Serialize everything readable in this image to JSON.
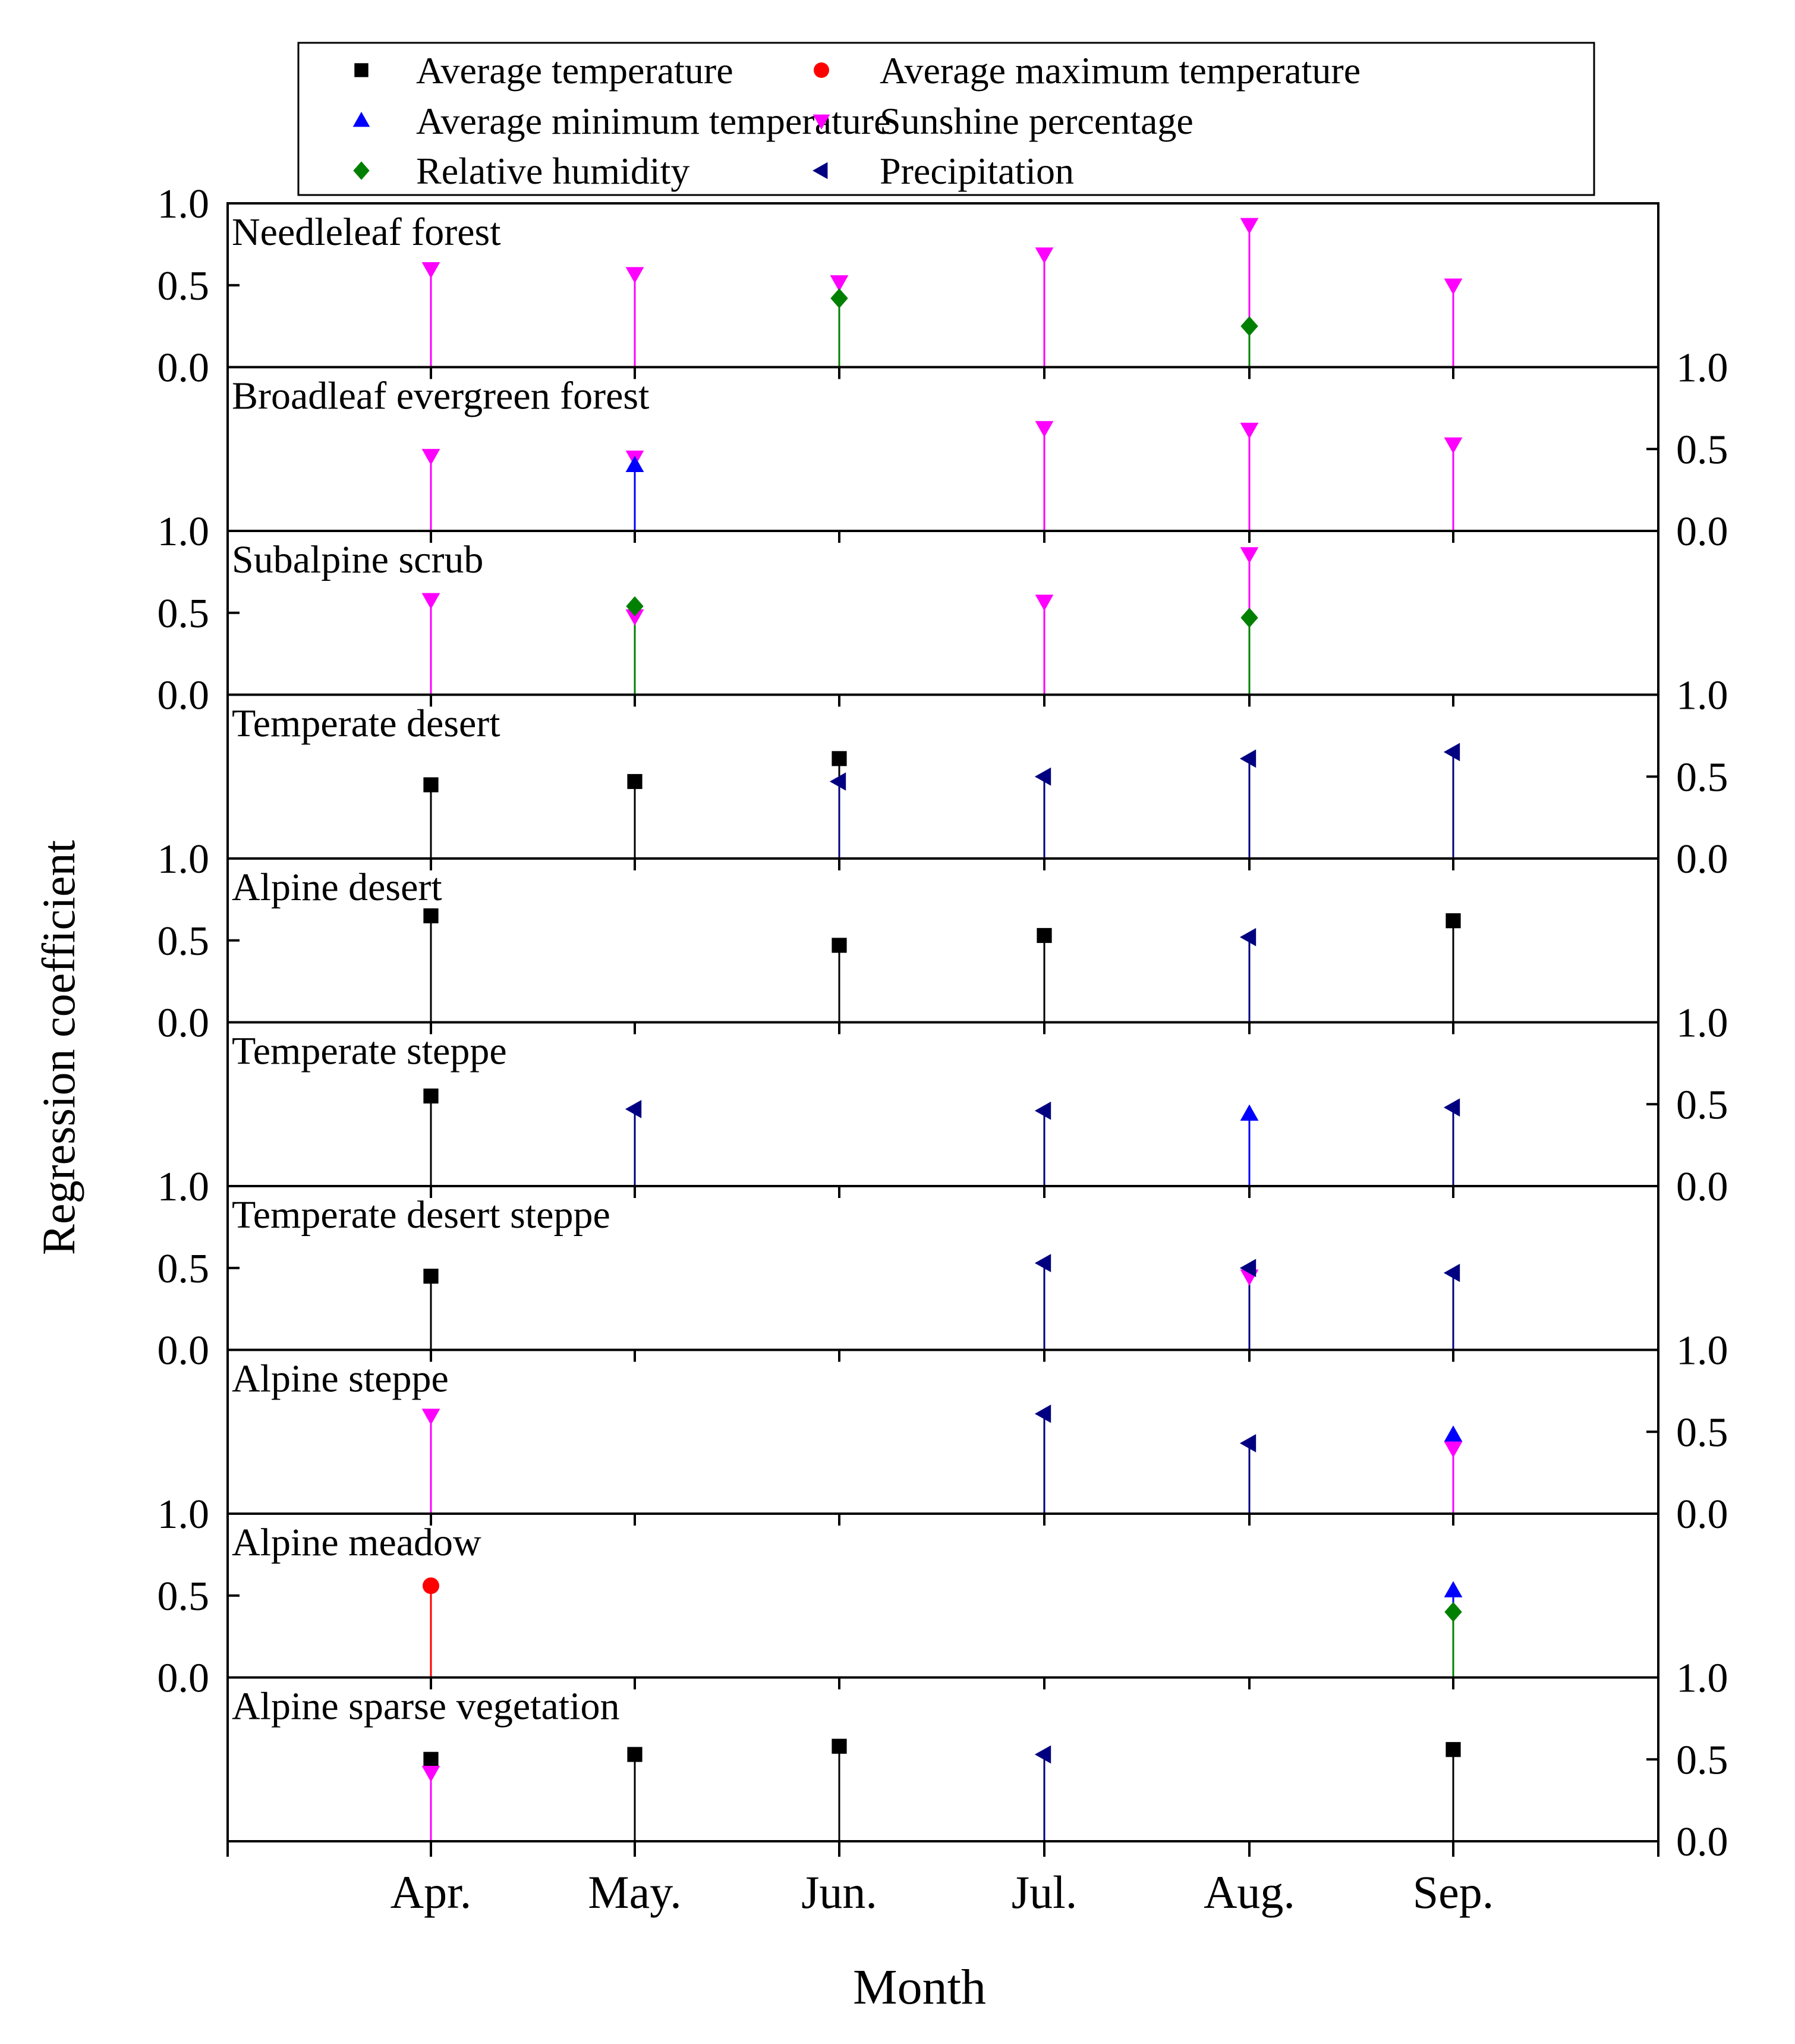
{
  "chart_data": {
    "type": "stem",
    "ylabel": "Regression coefficient",
    "xlabel": "Month",
    "categories": [
      "Apr.",
      "May.",
      "Jun.",
      "Jul.",
      "Aug.",
      "Sep."
    ],
    "ylim": [
      0,
      1.0
    ],
    "yticks": [
      "0.0",
      "0.5",
      "1.0"
    ],
    "legend": [
      {
        "key": "avg_temp",
        "label": "Average temperature",
        "color": "#000000",
        "marker": "square"
      },
      {
        "key": "avg_max_temp",
        "label": "Average maximum temperature",
        "color": "#ff0000",
        "marker": "circle"
      },
      {
        "key": "avg_min_temp",
        "label": "Average minimum temperature",
        "color": "#0000ff",
        "marker": "triangle-up"
      },
      {
        "key": "sunshine",
        "label": "Sunshine percentage",
        "color": "#ff00ff",
        "marker": "triangle-down"
      },
      {
        "key": "humidity",
        "label": "Relative humidity",
        "color": "#008000",
        "marker": "diamond"
      },
      {
        "key": "precip",
        "label": "Precipitation",
        "color": "#000080",
        "marker": "triangle-left"
      }
    ],
    "panels": [
      {
        "name": "Needleleaf forest",
        "axis_side": "left",
        "points": [
          {
            "month": 0,
            "var": "sunshine",
            "value": 0.6
          },
          {
            "month": 1,
            "var": "sunshine",
            "value": 0.57
          },
          {
            "month": 2,
            "var": "sunshine",
            "value": 0.52
          },
          {
            "month": 2,
            "var": "humidity",
            "value": 0.42
          },
          {
            "month": 3,
            "var": "sunshine",
            "value": 0.69
          },
          {
            "month": 4,
            "var": "sunshine",
            "value": 0.87
          },
          {
            "month": 4,
            "var": "humidity",
            "value": 0.25
          },
          {
            "month": 5,
            "var": "sunshine",
            "value": 0.5
          }
        ]
      },
      {
        "name": "Broadleaf evergreen forest",
        "axis_side": "right",
        "points": [
          {
            "month": 0,
            "var": "sunshine",
            "value": 0.46
          },
          {
            "month": 1,
            "var": "sunshine",
            "value": 0.45
          },
          {
            "month": 1,
            "var": "avg_min_temp",
            "value": 0.4
          },
          {
            "month": 3,
            "var": "sunshine",
            "value": 0.63
          },
          {
            "month": 4,
            "var": "sunshine",
            "value": 0.62
          },
          {
            "month": 5,
            "var": "sunshine",
            "value": 0.53
          }
        ]
      },
      {
        "name": "Subalpine scrub",
        "axis_side": "left",
        "points": [
          {
            "month": 0,
            "var": "sunshine",
            "value": 0.58
          },
          {
            "month": 1,
            "var": "sunshine",
            "value": 0.48
          },
          {
            "month": 1,
            "var": "humidity",
            "value": 0.54
          },
          {
            "month": 3,
            "var": "sunshine",
            "value": 0.57
          },
          {
            "month": 4,
            "var": "sunshine",
            "value": 0.86
          },
          {
            "month": 4,
            "var": "humidity",
            "value": 0.47
          }
        ]
      },
      {
        "name": "Temperate desert",
        "axis_side": "right",
        "points": [
          {
            "month": 0,
            "var": "avg_temp",
            "value": 0.45
          },
          {
            "month": 1,
            "var": "avg_temp",
            "value": 0.47
          },
          {
            "month": 2,
            "var": "avg_temp",
            "value": 0.61
          },
          {
            "month": 2,
            "var": "precip",
            "value": 0.47
          },
          {
            "month": 3,
            "var": "precip",
            "value": 0.5
          },
          {
            "month": 4,
            "var": "precip",
            "value": 0.61
          },
          {
            "month": 5,
            "var": "precip",
            "value": 0.65
          }
        ]
      },
      {
        "name": "Alpine desert",
        "axis_side": "left",
        "points": [
          {
            "month": 0,
            "var": "avg_temp",
            "value": 0.65
          },
          {
            "month": 2,
            "var": "avg_temp",
            "value": 0.47
          },
          {
            "month": 3,
            "var": "avg_temp",
            "value": 0.53
          },
          {
            "month": 4,
            "var": "precip",
            "value": 0.52
          },
          {
            "month": 5,
            "var": "avg_temp",
            "value": 0.62
          }
        ]
      },
      {
        "name": "Temperate steppe",
        "axis_side": "right",
        "points": [
          {
            "month": 0,
            "var": "avg_temp",
            "value": 0.55
          },
          {
            "month": 1,
            "var": "precip",
            "value": 0.47
          },
          {
            "month": 3,
            "var": "precip",
            "value": 0.46
          },
          {
            "month": 4,
            "var": "avg_min_temp",
            "value": 0.44
          },
          {
            "month": 5,
            "var": "precip",
            "value": 0.48
          }
        ]
      },
      {
        "name": "Temperate desert steppe",
        "axis_side": "left",
        "points": [
          {
            "month": 0,
            "var": "avg_temp",
            "value": 0.45
          },
          {
            "month": 3,
            "var": "precip",
            "value": 0.53
          },
          {
            "month": 4,
            "var": "sunshine",
            "value": 0.45
          },
          {
            "month": 4,
            "var": "precip",
            "value": 0.5
          },
          {
            "month": 5,
            "var": "precip",
            "value": 0.47
          }
        ]
      },
      {
        "name": "Alpine steppe",
        "axis_side": "right",
        "points": [
          {
            "month": 0,
            "var": "sunshine",
            "value": 0.6
          },
          {
            "month": 3,
            "var": "precip",
            "value": 0.61
          },
          {
            "month": 4,
            "var": "precip",
            "value": 0.43
          },
          {
            "month": 5,
            "var": "avg_min_temp",
            "value": 0.48
          },
          {
            "month": 5,
            "var": "sunshine",
            "value": 0.4
          }
        ]
      },
      {
        "name": "Alpine meadow",
        "axis_side": "left",
        "points": [
          {
            "month": 0,
            "var": "avg_max_temp",
            "value": 0.56
          },
          {
            "month": 5,
            "var": "avg_min_temp",
            "value": 0.53
          },
          {
            "month": 5,
            "var": "humidity",
            "value": 0.4
          }
        ]
      },
      {
        "name": "Alpine sparse vegetation",
        "axis_side": "right",
        "points": [
          {
            "month": 0,
            "var": "avg_temp",
            "value": 0.5
          },
          {
            "month": 0,
            "var": "sunshine",
            "value": 0.42
          },
          {
            "month": 1,
            "var": "avg_temp",
            "value": 0.53
          },
          {
            "month": 2,
            "var": "avg_temp",
            "value": 0.58
          },
          {
            "month": 3,
            "var": "precip",
            "value": 0.53
          },
          {
            "month": 5,
            "var": "avg_temp",
            "value": 0.56
          }
        ]
      }
    ]
  }
}
